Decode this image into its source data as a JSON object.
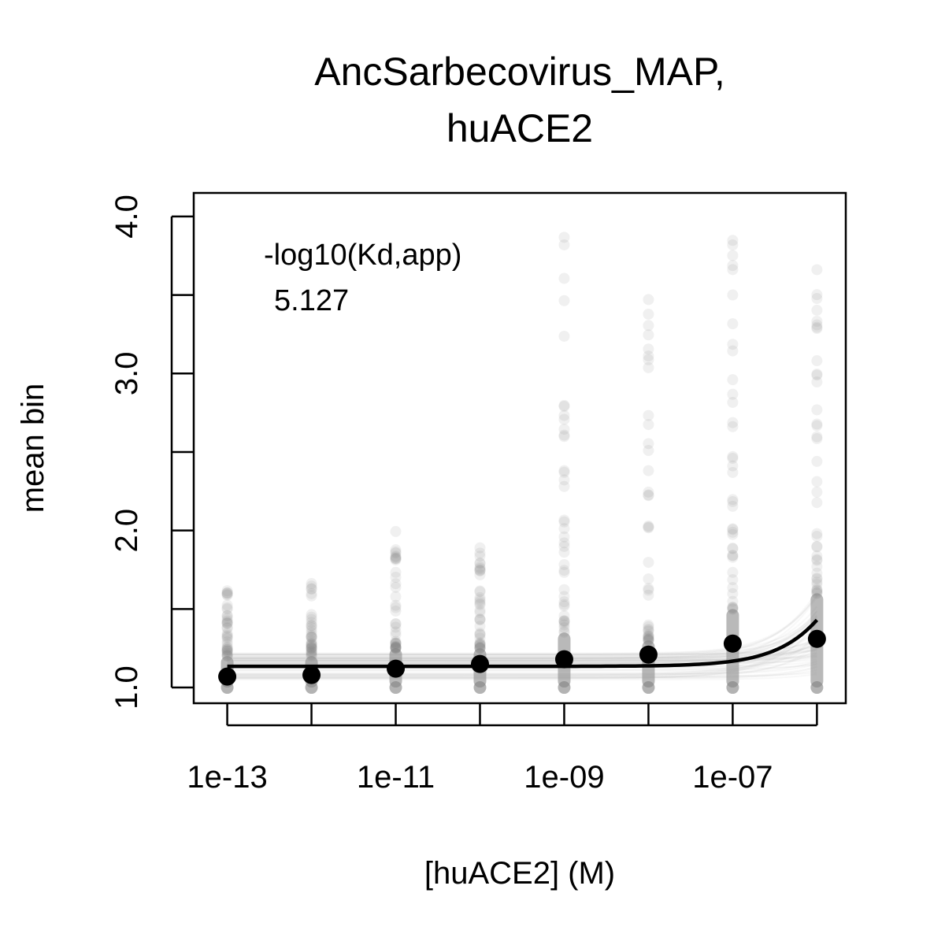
{
  "chart_data": {
    "type": "scatter",
    "title": [
      "AncSarbecovirus_MAP,",
      "huACE2"
    ],
    "xlabel": "[huACE2] (M)",
    "ylabel": "mean bin",
    "x_scale": "log10",
    "xlim": [
      4e-14,
      2.2e-06
    ],
    "ylim": [
      0.9,
      4.15
    ],
    "x_ticks": [
      1e-13,
      1e-11,
      1e-09,
      1e-07
    ],
    "x_tick_labels": [
      "1e-13",
      "1e-11",
      "1e-09",
      "1e-07"
    ],
    "x_minor_ticks": [
      1e-12,
      1e-10,
      1e-08,
      1e-06
    ],
    "y_ticks": [
      1.0,
      1.5,
      2.0,
      2.5,
      3.0,
      3.5,
      4.0
    ],
    "y_tick_labels": [
      "1.0",
      "",
      "2.0",
      "",
      "3.0",
      "",
      "4.0"
    ],
    "grid": false,
    "annotation": {
      "label": "-log10(Kd,app)",
      "value": "5.127"
    },
    "mean_points": {
      "x": [
        1e-13,
        1e-12,
        1e-11,
        1e-10,
        1e-09,
        1e-08,
        1e-07,
        1e-06
      ],
      "y": [
        1.07,
        1.08,
        1.12,
        1.15,
        1.18,
        1.21,
        1.28,
        1.31
      ]
    },
    "fit_curve": {
      "log10_kd": -5.127,
      "baseline": 1.135,
      "amplitude": 2.5,
      "hill": 1
    },
    "replicate_spread": {
      "x": [
        1e-13,
        1e-12,
        1e-11,
        1e-10,
        1e-09,
        1e-08,
        1e-07,
        1e-06
      ],
      "y_min": [
        1.0,
        1.0,
        1.0,
        1.0,
        1.0,
        1.0,
        1.0,
        1.0
      ],
      "y_max": [
        1.68,
        1.73,
        2.0,
        1.9,
        3.9,
        3.5,
        3.88,
        3.88
      ],
      "dense_upper": [
        1.2,
        1.2,
        1.25,
        1.25,
        1.35,
        1.3,
        1.5,
        1.6
      ]
    },
    "colors": {
      "mean_points": "#000000",
      "fit_curve": "#000000",
      "replicates": "#808080"
    }
  }
}
